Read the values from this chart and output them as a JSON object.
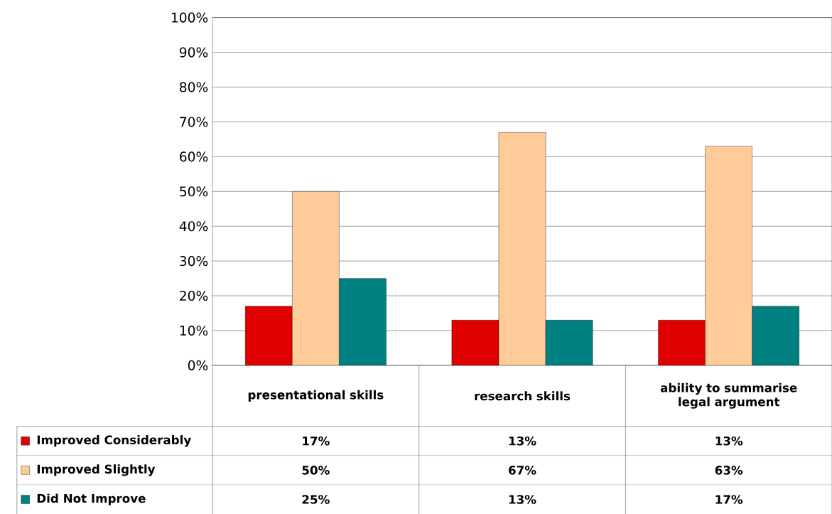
{
  "chart_data": {
    "type": "bar",
    "categories": [
      "presentational skills",
      "research skills",
      "ability to summarise legal argument"
    ],
    "series": [
      {
        "name": "Improved Considerably",
        "color": "#e00000",
        "values": [
          17,
          13,
          13
        ],
        "value_labels": [
          "17%",
          "13%",
          "13%"
        ]
      },
      {
        "name": "Improved Slightly",
        "color": "#ffcc99",
        "values": [
          50,
          67,
          63
        ],
        "value_labels": [
          "50%",
          "67%",
          "63%"
        ]
      },
      {
        "name": "Did Not Improve",
        "color": "#008080",
        "values": [
          25,
          13,
          17
        ],
        "value_labels": [
          "25%",
          "13%",
          "17%"
        ]
      }
    ],
    "ylim": [
      0,
      100
    ],
    "yticks": [
      {
        "value": 0,
        "label": "0%"
      },
      {
        "value": 10,
        "label": "10%"
      },
      {
        "value": 20,
        "label": "20%"
      },
      {
        "value": 30,
        "label": "30%"
      },
      {
        "value": 40,
        "label": "40%"
      },
      {
        "value": 50,
        "label": "50%"
      },
      {
        "value": 60,
        "label": "60%"
      },
      {
        "value": 70,
        "label": "70%"
      },
      {
        "value": 80,
        "label": "80%"
      },
      {
        "value": 90,
        "label": "90%"
      },
      {
        "value": 100,
        "label": "100%"
      }
    ],
    "grid": "y",
    "legend": "bottom"
  }
}
